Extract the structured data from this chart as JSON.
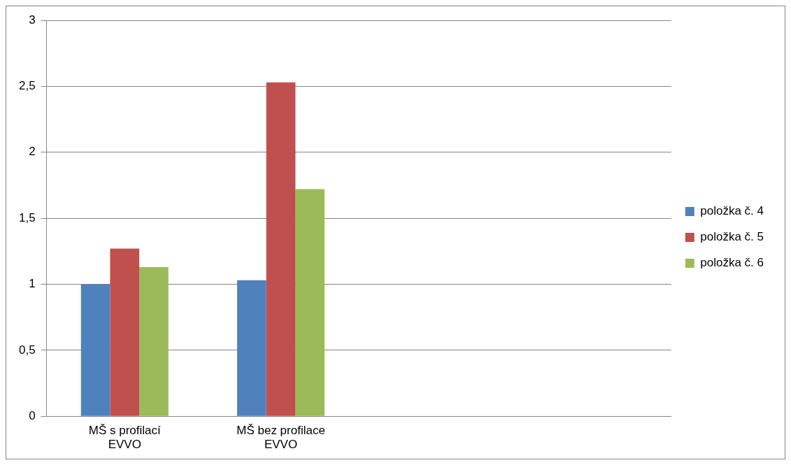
{
  "chart_data": {
    "type": "bar",
    "categories": [
      "MŠ s profilací EVVO",
      "MŠ bez profilace EVVO",
      null,
      null
    ],
    "series": [
      {
        "name": "položka č. 4",
        "color": "#4f81bd",
        "values": [
          1.0,
          1.03,
          null,
          null
        ]
      },
      {
        "name": "položka č. 5",
        "color": "#c0504d",
        "values": [
          1.27,
          2.53,
          null,
          null
        ]
      },
      {
        "name": "položka č. 6",
        "color": "#9bbb59",
        "values": [
          1.13,
          1.72,
          null,
          null
        ]
      }
    ],
    "ylim": [
      0,
      3
    ],
    "yticks": [
      0,
      {
        "value": 0.5,
        "label": "0,5"
      },
      1,
      {
        "value": 1.5,
        "label": "1,5"
      },
      2,
      {
        "value": 2.5,
        "label": "2,5"
      },
      3
    ],
    "grid": "y",
    "legend": "right"
  }
}
